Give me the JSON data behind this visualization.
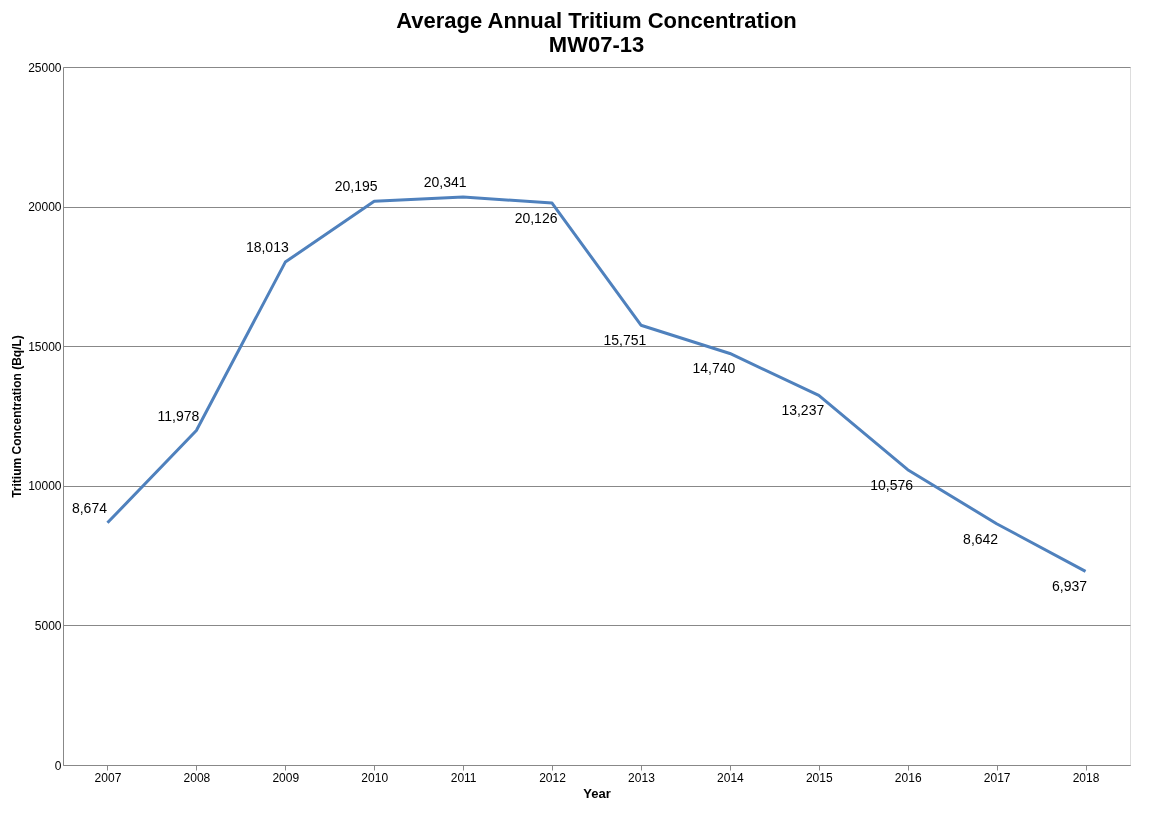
{
  "chart_data": {
    "type": "line",
    "title": "Average Annual Tritium Concentration\nMW07-13",
    "xlabel": "Year",
    "ylabel": "Tritium Concentration (Bq/L)",
    "categories": [
      "2007",
      "2008",
      "2009",
      "2010",
      "2011",
      "2012",
      "2013",
      "2014",
      "2015",
      "2016",
      "2017",
      "2018"
    ],
    "series": [
      {
        "color": "#4f81bd",
        "values": [
          8674,
          11978,
          18013,
          20195,
          20341,
          20126,
          15751,
          14740,
          13237,
          10576,
          8642,
          6937
        ]
      }
    ],
    "value_labels": [
      "8,674",
      "11,978",
      "18,013",
      "20,195",
      "20,341",
      "20,126",
      "15,751",
      "14,740",
      "13,237",
      "10,576",
      "8,642",
      "6,937"
    ],
    "ylim": [
      0,
      25000
    ],
    "yticks": [
      0,
      5000,
      10000,
      15000,
      20000,
      25000
    ],
    "grid": "y",
    "marker": "none",
    "line_style": "solid"
  }
}
